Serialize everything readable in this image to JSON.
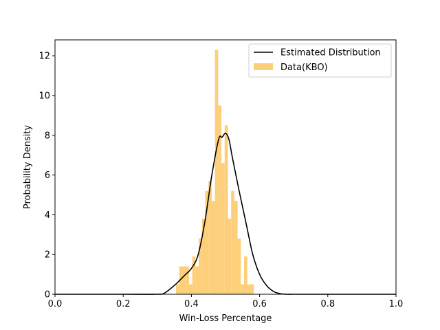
{
  "chart_data": {
    "type": "bar",
    "title": "",
    "xlabel": "Win-Loss Percentage",
    "ylabel": "Probability Density",
    "xlim": [
      0.0,
      1.0
    ],
    "ylim": [
      0,
      12.8
    ],
    "xticks": [
      "0.0",
      "0.2",
      "0.4",
      "0.6",
      "0.8",
      "1.0"
    ],
    "yticks": [
      "0",
      "2",
      "4",
      "6",
      "8",
      "10",
      "12"
    ],
    "grid": false,
    "legend_position": "top-right",
    "colors": {
      "histogram": "#fecf7a",
      "line": "#000000",
      "axes": "#000000"
    },
    "histogram": {
      "name": "Data(KBO)",
      "bin_width": 0.0095,
      "bin_starts": [
        0.355,
        0.3645,
        0.374,
        0.3835,
        0.393,
        0.4025,
        0.412,
        0.4215,
        0.431,
        0.4405,
        0.45,
        0.4595,
        0.469,
        0.4785,
        0.488,
        0.4975,
        0.507,
        0.5165,
        0.526,
        0.5355,
        0.545,
        0.5545,
        0.564,
        0.5735,
        0.583,
        0.5925,
        0.602,
        0.6115,
        0.621,
        0.6305
      ],
      "values": [
        0.5,
        1.4,
        1.4,
        1.4,
        0.5,
        1.9,
        1.4,
        2.8,
        3.8,
        5.2,
        5.7,
        4.7,
        12.3,
        9.5,
        6.6,
        8.5,
        3.8,
        5.2,
        4.7,
        2.8,
        0.5,
        1.9,
        0.5,
        0.5,
        0.0,
        0.0,
        0.0,
        0.0,
        0.0,
        0.0
      ]
    },
    "series": [
      {
        "name": "Estimated Distribution",
        "x": [
          0.0,
          0.2,
          0.3,
          0.32,
          0.34,
          0.36,
          0.38,
          0.4,
          0.42,
          0.44,
          0.46,
          0.48,
          0.49,
          0.5,
          0.51,
          0.52,
          0.54,
          0.56,
          0.58,
          0.6,
          0.62,
          0.64,
          0.66,
          0.68,
          0.7,
          0.8,
          1.0
        ],
        "values": [
          0.0,
          0.0,
          0.0,
          0.05,
          0.3,
          0.6,
          0.95,
          1.3,
          2.0,
          3.7,
          6.0,
          7.8,
          7.9,
          8.1,
          7.8,
          6.9,
          5.2,
          3.6,
          2.0,
          1.0,
          0.45,
          0.15,
          0.03,
          0.0,
          0.0,
          0.0,
          0.0
        ]
      }
    ]
  }
}
